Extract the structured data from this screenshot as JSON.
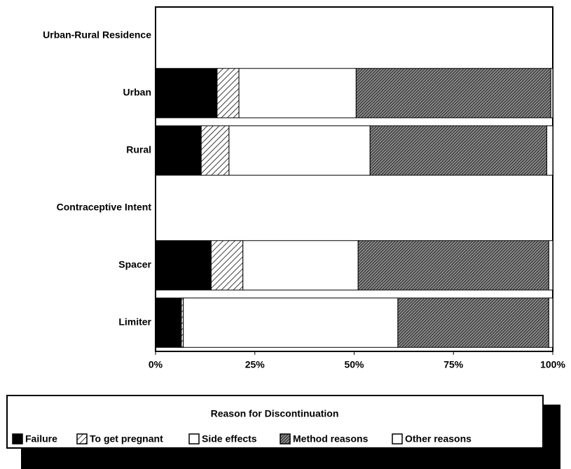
{
  "chart_data": {
    "type": "stacked-barh",
    "categories": [
      "Urban-Rural Residence",
      "Urban",
      "Rural",
      "Contraceptive Intent",
      "Spacer",
      "Limiter"
    ],
    "series": [
      {
        "name": "Failure",
        "color": "#000000",
        "pattern": "solid",
        "values": [
          null,
          15.5,
          11.5,
          null,
          14,
          6.5
        ]
      },
      {
        "name": "To get pregnant",
        "color": "#000000",
        "pattern": "sparse-hatch",
        "values": [
          null,
          5.5,
          7,
          null,
          8,
          0.5
        ]
      },
      {
        "name": "Side effects",
        "color": "#ffffff",
        "pattern": "solid",
        "values": [
          null,
          29.5,
          35.5,
          null,
          29,
          54
        ]
      },
      {
        "name": "Method reasons",
        "color": "#000000",
        "pattern": "dense-hatch",
        "values": [
          null,
          49,
          44.5,
          null,
          48,
          38
        ]
      },
      {
        "name": "Other reasons",
        "color": "#ffffff",
        "pattern": "solid",
        "values": [
          null,
          0.5,
          1.5,
          null,
          1,
          1
        ]
      }
    ],
    "xlim": [
      0,
      100
    ],
    "xticks": [
      {
        "value": 0,
        "label": "0%"
      },
      {
        "value": 25,
        "label": "25%"
      },
      {
        "value": 50,
        "label": "50%"
      },
      {
        "value": 75,
        "label": "75%"
      },
      {
        "value": 100,
        "label": "100%"
      }
    ],
    "legend": {
      "title": "Reason for Discontinuation",
      "position": "bottom"
    }
  }
}
